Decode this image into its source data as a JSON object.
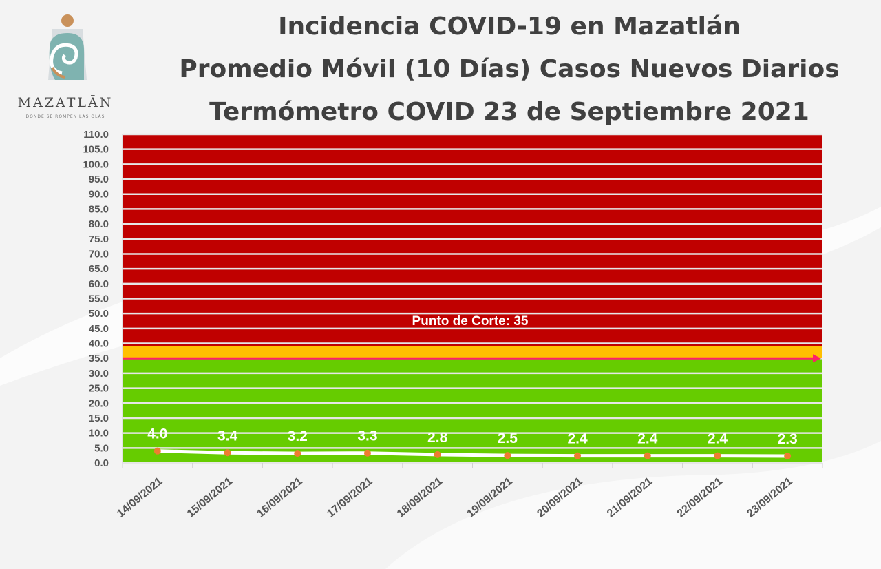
{
  "logo": {
    "name": "MAZATLĀN",
    "tagline": "DONDE SE ROMPEN LAS OLAS"
  },
  "header": {
    "title_line1": "Incidencia COVID-19 en Mazatlán",
    "title_line2": "Promedio Móvil (10 Días) Casos Nuevos Diarios",
    "title_line3": "Termómetro COVID 23 de Septiembre 2021"
  },
  "colors": {
    "red_zone": "#c00000",
    "yellow_zone": "#ffc000",
    "green_zone": "#66cc00",
    "cutoff_arrow": "#ff1f6a",
    "line": "#ffffff",
    "markers": "#ed7d31"
  },
  "chart_data": {
    "type": "line",
    "title": "",
    "xlabel": "",
    "ylabel": "",
    "ylim": [
      0,
      110
    ],
    "ytick_step": 5,
    "grid": true,
    "categories": [
      "14/09/2021",
      "15/09/2021",
      "16/09/2021",
      "17/09/2021",
      "18/09/2021",
      "19/09/2021",
      "20/09/2021",
      "21/09/2021",
      "22/09/2021",
      "23/09/2021"
    ],
    "values": [
      4.0,
      3.4,
      3.2,
      3.3,
      2.8,
      2.5,
      2.4,
      2.4,
      2.4,
      2.3
    ],
    "data_labels": [
      "4.0",
      "3.4",
      "3.2",
      "3.3",
      "2.8",
      "2.5",
      "2.4",
      "2.4",
      "2.4",
      "2.3"
    ],
    "bands": [
      {
        "from": 0,
        "to": 35,
        "color": "#66cc00"
      },
      {
        "from": 35,
        "to": 39,
        "color": "#ffc000"
      },
      {
        "from": 39,
        "to": 110,
        "color": "#c00000"
      }
    ],
    "cutoff": {
      "value": 35,
      "label": "Punto de Corte: 35"
    }
  }
}
